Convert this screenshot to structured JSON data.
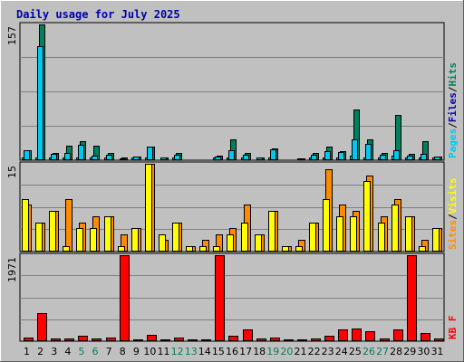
{
  "title": "Daily usage for July 2025",
  "colors": {
    "background": "#c0c0c0",
    "plot_bg": "#c0c0c0",
    "grid": "#808080",
    "title": "#0000aa",
    "hits": "#00805c",
    "files": "#00c8f0",
    "pages": "#00e0ff",
    "sites": "#ffff00",
    "visits": "#ff8c00",
    "kbf": "#ff0000",
    "weekend_day": "#00805c",
    "weekday": "#000000",
    "separator": "#000000"
  },
  "chart_data": [
    {
      "type": "bar",
      "panel": "top",
      "y_axis_max_label": "157",
      "ylim": [
        0,
        157
      ],
      "side_labels": [
        {
          "text": "Pages",
          "color": "#00c8f0"
        },
        {
          "text": "/",
          "color": "#000000"
        },
        {
          "text": "Files",
          "color": "#0000aa"
        },
        {
          "text": "/",
          "color": "#000000"
        },
        {
          "text": "Hits",
          "color": "#00805c"
        }
      ],
      "categories": [
        "1",
        "2",
        "3",
        "4",
        "5",
        "6",
        "7",
        "8",
        "9",
        "10",
        "11",
        "12",
        "13",
        "14",
        "15",
        "16",
        "17",
        "18",
        "19",
        "20",
        "21",
        "22",
        "23",
        "24",
        "25",
        "26",
        "27",
        "28",
        "29",
        "30",
        "31"
      ],
      "series": [
        {
          "name": "Hits",
          "color": "#00805c",
          "values": [
            12,
            157,
            8,
            17,
            22,
            17,
            8,
            3,
            4,
            16,
            3,
            8,
            1,
            1,
            5,
            24,
            8,
            3,
            14,
            1,
            2,
            8,
            16,
            10,
            59,
            24,
            8,
            52,
            7,
            22,
            4
          ]
        },
        {
          "name": "Files",
          "color": "#00c8f0",
          "values": [
            12,
            132,
            7,
            8,
            18,
            5,
            6,
            2,
            4,
            16,
            3,
            6,
            1,
            1,
            4,
            11,
            6,
            3,
            13,
            1,
            2,
            6,
            10,
            9,
            24,
            19,
            6,
            11,
            5,
            7,
            4
          ]
        },
        {
          "name": "Pages",
          "color": "#00e0ff",
          "values": [
            3,
            3,
            3,
            3,
            3,
            3,
            3,
            1,
            3,
            3,
            1,
            3,
            1,
            1,
            3,
            3,
            3,
            1,
            3,
            1,
            1,
            3,
            3,
            3,
            5,
            3,
            3,
            5,
            3,
            3,
            3
          ]
        }
      ]
    },
    {
      "type": "bar",
      "panel": "middle",
      "y_axis_max_label": "15",
      "ylim": [
        0,
        15
      ],
      "side_labels": [
        {
          "text": "Sites",
          "color": "#ff8c00"
        },
        {
          "text": "/",
          "color": "#000000"
        },
        {
          "text": "Visits",
          "color": "#ffff00"
        }
      ],
      "categories": [
        "1",
        "2",
        "3",
        "4",
        "5",
        "6",
        "7",
        "8",
        "9",
        "10",
        "11",
        "12",
        "13",
        "14",
        "15",
        "16",
        "17",
        "18",
        "19",
        "20",
        "21",
        "22",
        "23",
        "24",
        "25",
        "26",
        "27",
        "28",
        "29",
        "30",
        "31"
      ],
      "series": [
        {
          "name": "Visits",
          "color": "#ffff00",
          "values": [
            9,
            5,
            7,
            1,
            4,
            4,
            6,
            1,
            4,
            15,
            3,
            5,
            1,
            1,
            1,
            3,
            5,
            3,
            7,
            1,
            1,
            5,
            9,
            6,
            6,
            12,
            5,
            8,
            6,
            1,
            4
          ]
        },
        {
          "name": "Sites",
          "color": "#ff8c00",
          "values": [
            8,
            5,
            7,
            9,
            5,
            6,
            6,
            3,
            4,
            15,
            2,
            5,
            1,
            2,
            3,
            4,
            8,
            3,
            7,
            1,
            2,
            5,
            14,
            8,
            7,
            13,
            6,
            9,
            6,
            2,
            4
          ]
        }
      ]
    },
    {
      "type": "bar",
      "panel": "bottom",
      "y_axis_max_label": "1971",
      "ylim": [
        0,
        1971
      ],
      "side_labels": [
        {
          "text": "KB F",
          "color": "#ff0000"
        }
      ],
      "categories": [
        "1",
        "2",
        "3",
        "4",
        "5",
        "6",
        "7",
        "8",
        "9",
        "10",
        "11",
        "12",
        "13",
        "14",
        "15",
        "16",
        "17",
        "18",
        "19",
        "20",
        "21",
        "22",
        "23",
        "24",
        "25",
        "26",
        "27",
        "28",
        "29",
        "30",
        "31"
      ],
      "series": [
        {
          "name": "KB F",
          "color": "#ff0000",
          "values": [
            90,
            640,
            60,
            70,
            120,
            60,
            80,
            1971,
            50,
            150,
            40,
            80,
            40,
            40,
            1971,
            120,
            280,
            70,
            80,
            40,
            40,
            70,
            120,
            280,
            300,
            230,
            70,
            260,
            1971,
            180,
            60
          ]
        }
      ]
    }
  ],
  "x_axis": {
    "labels": [
      "1",
      "2",
      "3",
      "4",
      "5",
      "6",
      "7",
      "8",
      "9",
      "10",
      "11",
      "12",
      "13",
      "14",
      "15",
      "16",
      "17",
      "18",
      "19",
      "20",
      "21",
      "22",
      "23",
      "24",
      "25",
      "26",
      "27",
      "28",
      "29",
      "30",
      "31"
    ],
    "weekend_days": [
      "5",
      "6",
      "12",
      "13",
      "19",
      "20",
      "26",
      "27"
    ]
  }
}
